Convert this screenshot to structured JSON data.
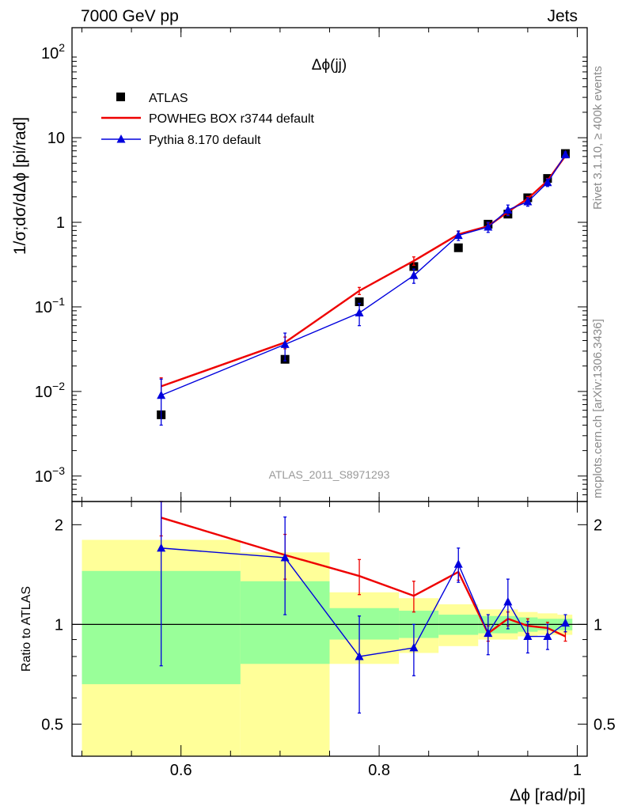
{
  "header": {
    "left_label": "7000 GeV pp",
    "right_label": "Jets"
  },
  "side_labels": {
    "rivet": "Rivet 3.1.10, ≥ 400k events",
    "mcplots": "mcplots.cern.ch [arXiv:1306.3436]"
  },
  "chart_data": [
    {
      "type": "scatter",
      "panel": "main",
      "title": "Δϕ(jj)",
      "ylabel": "1/σ;dσ/dΔϕ [pi/rad]",
      "analysis_label": "ATLAS_2011_S8971293",
      "yscale": "log",
      "ylim": [
        0.0005,
        200
      ],
      "xlim": [
        0.49,
        1.01
      ],
      "y_tick_labels": [
        {
          "v": 0.001,
          "base": "10",
          "exp": "−3"
        },
        {
          "v": 0.01,
          "base": "10",
          "exp": "−2"
        },
        {
          "v": 0.1,
          "base": "10",
          "exp": "−1"
        },
        {
          "v": 1,
          "base": "1",
          "exp": ""
        },
        {
          "v": 10,
          "base": "10",
          "exp": ""
        },
        {
          "v": 100,
          "base": "10",
          "exp": "2"
        }
      ],
      "legend": [
        "ATLAS",
        "POWHEG BOX r3744 default",
        "Pythia 8.170 default"
      ],
      "legend_position": "top-left",
      "series": [
        {
          "name": "ATLAS",
          "style": "markers",
          "marker": "square",
          "color": "#000000",
          "x": [
            0.58,
            0.705,
            0.78,
            0.835,
            0.88,
            0.91,
            0.93,
            0.95,
            0.97,
            0.988
          ],
          "y": [
            0.0053,
            0.024,
            0.115,
            0.3,
            0.5,
            0.95,
            1.25,
            1.95,
            3.3,
            6.5
          ]
        },
        {
          "name": "POWHEG BOX r3744 default",
          "style": "line",
          "color": "#ee0000",
          "x": [
            0.58,
            0.705,
            0.78,
            0.835,
            0.88,
            0.91,
            0.93,
            0.95,
            0.97,
            0.988
          ],
          "y": [
            0.0115,
            0.038,
            0.155,
            0.35,
            0.72,
            0.9,
            1.33,
            1.9,
            3.1,
            6.1
          ],
          "yerr": [
            0.003,
            0.006,
            0.015,
            0.04,
            0.06,
            0.08,
            0.1,
            0.12,
            0.2,
            0.3
          ]
        },
        {
          "name": "Pythia 8.170 default",
          "style": "line+markers",
          "marker": "triangle",
          "color": "#0000dd",
          "x": [
            0.58,
            0.705,
            0.78,
            0.835,
            0.88,
            0.91,
            0.93,
            0.95,
            0.97,
            0.988
          ],
          "y": [
            0.009,
            0.036,
            0.085,
            0.235,
            0.7,
            0.88,
            1.4,
            1.75,
            2.95,
            6.3
          ],
          "yerr": [
            0.005,
            0.013,
            0.025,
            0.045,
            0.09,
            0.12,
            0.2,
            0.2,
            0.3,
            0.5
          ]
        }
      ]
    },
    {
      "type": "line",
      "panel": "ratio",
      "ylabel": "Ratio to ATLAS",
      "xlabel": "Δϕ [rad/pi]",
      "yscale": "log",
      "ylim": [
        0.4,
        2.35
      ],
      "xlim": [
        0.49,
        1.01
      ],
      "x_ticks": [
        0.6,
        0.8,
        1.0
      ],
      "x_tick_labels": [
        "0.6",
        "0.8",
        "1"
      ],
      "y_ticks": [
        0.5,
        1,
        2
      ],
      "y_tick_labels": [
        "0.5",
        "1",
        "2"
      ],
      "reference_line": 1,
      "bands": [
        {
          "name": "outer",
          "color": "#ffff99",
          "bins": [
            {
              "x0": 0.5,
              "x1": 0.66,
              "lo": 0.3,
              "hi": 1.8
            },
            {
              "x0": 0.66,
              "x1": 0.75,
              "lo": 0.38,
              "hi": 1.65
            },
            {
              "x0": 0.75,
              "x1": 0.82,
              "lo": 0.76,
              "hi": 1.25
            },
            {
              "x0": 0.82,
              "x1": 0.86,
              "lo": 0.82,
              "hi": 1.2
            },
            {
              "x0": 0.86,
              "x1": 0.9,
              "lo": 0.86,
              "hi": 1.15
            },
            {
              "x0": 0.9,
              "x1": 0.94,
              "lo": 0.9,
              "hi": 1.11
            },
            {
              "x0": 0.94,
              "x1": 0.96,
              "lo": 0.92,
              "hi": 1.09
            },
            {
              "x0": 0.96,
              "x1": 0.98,
              "lo": 0.93,
              "hi": 1.08
            },
            {
              "x0": 0.98,
              "x1": 0.995,
              "lo": 0.93,
              "hi": 1.07
            }
          ]
        },
        {
          "name": "inner",
          "color": "#99ff99",
          "bins": [
            {
              "x0": 0.5,
              "x1": 0.66,
              "lo": 0.66,
              "hi": 1.45
            },
            {
              "x0": 0.66,
              "x1": 0.75,
              "lo": 0.76,
              "hi": 1.35
            },
            {
              "x0": 0.75,
              "x1": 0.82,
              "lo": 0.9,
              "hi": 1.12
            },
            {
              "x0": 0.82,
              "x1": 0.86,
              "lo": 0.91,
              "hi": 1.1
            },
            {
              "x0": 0.86,
              "x1": 0.9,
              "lo": 0.93,
              "hi": 1.07
            },
            {
              "x0": 0.9,
              "x1": 0.94,
              "lo": 0.94,
              "hi": 1.06
            },
            {
              "x0": 0.94,
              "x1": 0.96,
              "lo": 0.95,
              "hi": 1.05
            },
            {
              "x0": 0.96,
              "x1": 0.98,
              "lo": 0.96,
              "hi": 1.04
            },
            {
              "x0": 0.98,
              "x1": 0.995,
              "lo": 0.96,
              "hi": 1.04
            }
          ]
        }
      ],
      "series": [
        {
          "name": "POWHEG BOX r3744 default",
          "style": "line",
          "color": "#ee0000",
          "x": [
            0.58,
            0.705,
            0.78,
            0.835,
            0.88,
            0.91,
            0.93,
            0.95,
            0.97,
            0.988
          ],
          "y": [
            2.1,
            1.62,
            1.4,
            1.22,
            1.44,
            0.94,
            1.04,
            0.99,
            0.975,
            0.92
          ],
          "yerr": [
            0.25,
            0.25,
            0.17,
            0.13,
            0.08,
            0.05,
            0.05,
            0.05,
            0.04,
            0.03
          ]
        },
        {
          "name": "Pythia 8.170 default",
          "style": "line+markers",
          "marker": "triangle",
          "color": "#0000dd",
          "x": [
            0.58,
            0.705,
            0.78,
            0.835,
            0.88,
            0.91,
            0.93,
            0.95,
            0.97,
            0.988
          ],
          "y": [
            1.7,
            1.59,
            0.8,
            0.85,
            1.52,
            0.94,
            1.17,
            0.92,
            0.92,
            1.01
          ],
          "yerr": [
            0.95,
            0.52,
            0.26,
            0.15,
            0.18,
            0.13,
            0.2,
            0.1,
            0.08,
            0.06
          ]
        }
      ]
    }
  ]
}
